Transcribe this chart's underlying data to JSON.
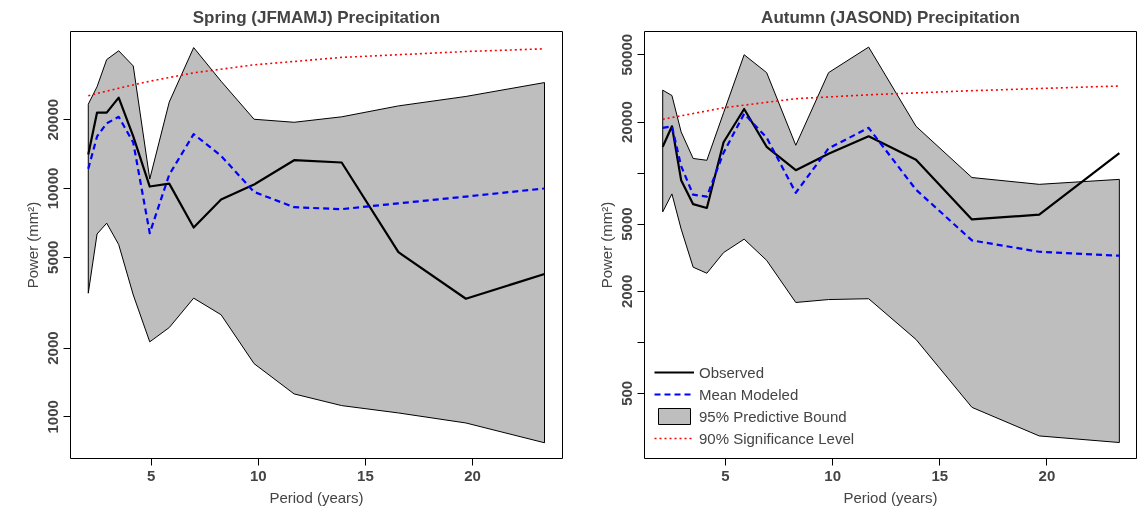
{
  "chart_data": [
    {
      "type": "line",
      "title": "Spring (JFMAMJ) Precipitation",
      "xlabel": "Period (years)",
      "ylabel": "Power (mm²)",
      "log": "y",
      "grid": false,
      "marker": "none",
      "xlim": [
        1.23,
        24.2
      ],
      "ylim": [
        657,
        48700
      ],
      "xticks": [
        5,
        10,
        15,
        20
      ],
      "yticks": [
        1000,
        2000,
        5000,
        10000,
        20000
      ],
      "x": [
        2.06,
        2.47,
        2.92,
        3.48,
        4.16,
        4.93,
        5.84,
        6.98,
        8.26,
        9.8,
        11.67,
        13.89,
        16.54,
        19.69,
        23.36
      ],
      "series": [
        {
          "type": "area",
          "color": "#bebebe",
          "values": [
            null,
            null,
            null,
            null,
            null,
            null,
            null,
            null,
            null,
            null,
            null,
            null,
            null,
            null,
            null
          ],
          "lower": [
            3480,
            6320,
            7050,
            5680,
            3420,
            2130,
            2460,
            3310,
            2800,
            1710,
            1260,
            1120,
            1040,
            940,
            770
          ],
          "upper": [
            23400,
            27900,
            36700,
            40100,
            34400,
            11000,
            23900,
            41400,
            29500,
            20100,
            19500,
            20600,
            23000,
            25300,
            29100
          ]
        },
        {
          "color": "#000000",
          "line_style": "solid",
          "values": [
            14100,
            21500,
            21500,
            25000,
            16900,
            10200,
            10500,
            6750,
            8950,
            10400,
            13300,
            13000,
            5260,
            3290,
            4220
          ]
        },
        {
          "color": "#0000ff",
          "line_style": "dashed",
          "values": [
            12200,
            16900,
            19300,
            20600,
            15900,
            6370,
            11500,
            17300,
            13900,
            9660,
            8280,
            8120,
            8610,
            9220,
            10000
          ]
        },
        {
          "color": "#ff0000",
          "line_style": "dotted",
          "x": [
            2.06,
            3.48,
            4.93,
            6.98,
            9.8,
            13.89,
            19.69,
            23.36
          ],
          "values": [
            25500,
            27500,
            29500,
            32100,
            34800,
            37500,
            39800,
            40900
          ]
        }
      ]
    },
    {
      "type": "line",
      "title": "Autumn (JASOND) Precipitation",
      "xlabel": "Period (years)",
      "ylabel": "Power (mm²)",
      "log": "y",
      "grid": false,
      "legend": "bottom left",
      "marker": "none",
      "xlim": [
        1.22,
        24.18
      ],
      "ylim": [
        206,
        68600
      ],
      "xticks": [
        5,
        10,
        15,
        20
      ],
      "yticks": [
        500,
        {
          "value": 1000,
          "label": null
        },
        2000,
        5000,
        {
          "value": 10000,
          "label": null
        },
        20000,
        50000
      ],
      "x": [
        2.07,
        2.5,
        2.93,
        3.49,
        4.13,
        4.91,
        5.87,
        6.92,
        8.28,
        9.81,
        11.68,
        13.89,
        16.5,
        19.64,
        23.38
      ],
      "series": [
        {
          "name": "Observed",
          "color": "#000000",
          "line_style": "solid",
          "values": [
            14300,
            18900,
            9080,
            6550,
            6220,
            15200,
            23900,
            14300,
            10400,
            13000,
            16500,
            12000,
            5320,
            5680,
            13100
          ]
        },
        {
          "name": "Mean Modeled",
          "color": "#0000ff",
          "line_style": "dashed",
          "values": [
            18500,
            18900,
            11000,
            7450,
            7260,
            13200,
            22400,
            16200,
            7650,
            14000,
            18500,
            7980,
            4000,
            3430,
            3250
          ]
        },
        {
          "name": "95% Predictive Bound",
          "type": "area",
          "color": "#bebebe",
          "values": [
            null,
            null,
            null,
            null,
            null,
            null,
            null,
            null,
            null,
            null,
            null,
            null,
            null,
            null,
            null
          ],
          "lower": [
            5900,
            7530,
            4670,
            2780,
            2560,
            3390,
            4070,
            3050,
            1720,
            1790,
            1810,
            1040,
            413,
            280,
            256
          ],
          "upper": [
            30900,
            28700,
            17500,
            12200,
            11900,
            22700,
            50000,
            39200,
            14600,
            39200,
            55500,
            18900,
            9410,
            8580,
            9180
          ]
        },
        {
          "name": "90% Significance Level",
          "color": "#ff0000",
          "line_style": "dotted",
          "x": [
            2.07,
            4.91,
            8.28,
            11.68,
            16.27,
            23.38
          ],
          "values": [
            20800,
            24300,
            27500,
            29000,
            30600,
            32700
          ]
        }
      ]
    }
  ]
}
